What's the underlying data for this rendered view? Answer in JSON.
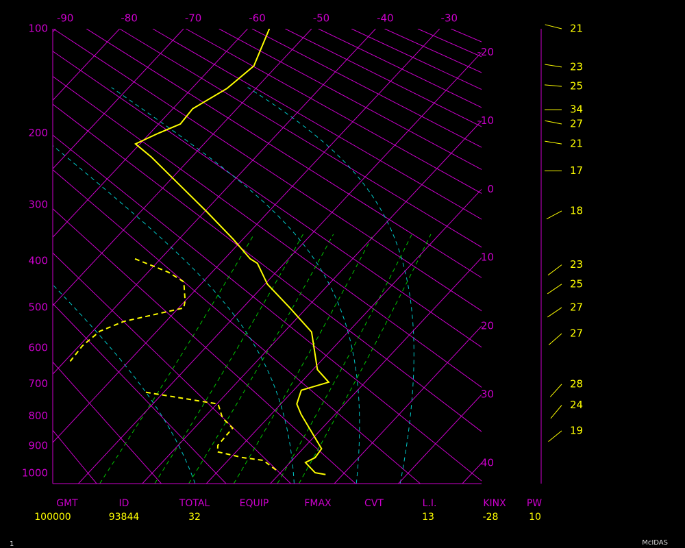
{
  "chart_data": {
    "type": "skewt",
    "axis_color": "#cc00cc",
    "ylim": [
      100,
      1040
    ],
    "yticks": [
      100,
      200,
      300,
      400,
      500,
      600,
      700,
      800,
      900,
      1000
    ],
    "xlim": [
      -24,
      43
    ],
    "xticks": [
      -90,
      -80,
      -70,
      -60,
      -50,
      -40,
      -30
    ],
    "xticks_right": [
      -20,
      -10,
      0,
      10,
      20,
      30,
      40
    ],
    "grid": false,
    "temperature": {
      "color": "#ffff00",
      "dashed": false,
      "pressure": [
        100,
        130,
        151,
        172,
        189,
        200,
        213,
        230,
        263,
        311,
        359,
        396,
        405,
        448,
        501,
        559,
        659,
        695,
        719,
        761,
        794,
        910,
        942,
        960,
        998,
        1005
      ],
      "values": [
        -56.6,
        -53.6,
        -54.5,
        -56.9,
        -56.6,
        -58.7,
        -60.7,
        -56.3,
        -49.1,
        -39.7,
        -31.5,
        -26,
        -24.2,
        -19.6,
        -12.6,
        -5.7,
        0.7,
        4.3,
        1.2,
        2.5,
        4.7,
        12.9,
        13.2,
        12.4,
        15.4,
        17.3
      ]
    },
    "dewpoint": {
      "color": "#ffff00",
      "dashed": true,
      "pressure": [
        396,
        423,
        443,
        485,
        501,
        533,
        557,
        594,
        640,
        null,
        725,
        741,
        761,
        805,
        839,
        898,
        921,
        942,
        952,
        992
      ],
      "values": [
        -44,
        -36.8,
        -33,
        -30,
        -29.2,
        -36.6,
        -38.9,
        -39.5,
        -39.1,
        null,
        -22.8,
        -17,
        -9.8,
        -7.1,
        -4,
        -3.8,
        -2.9,
        1.9,
        5.5,
        9.3
      ]
    },
    "wind": {
      "color": "#ffff00",
      "pressure": [
        100,
        131,
        149,
        173,
        189,
        213,
        249,
        310,
        408,
        448,
        500,
        563,
        701,
        765,
        848
      ],
      "speed": [
        21,
        23,
        25,
        34,
        27,
        21,
        17,
        18,
        23,
        25,
        27,
        27,
        28,
        24,
        19
      ],
      "direction": [
        284,
        279,
        275,
        270,
        281,
        279,
        270,
        242,
        233,
        236,
        236,
        229,
        222,
        220,
        231
      ]
    },
    "indices": [
      {
        "label": "GMT",
        "value": "100000"
      },
      {
        "label": "ID",
        "value": "93844"
      },
      {
        "label": "TOTAL",
        "value": "32"
      },
      {
        "label": "EQUIP"
      },
      {
        "label": "FMAX"
      },
      {
        "label": "CVT"
      },
      {
        "label": "L.I.",
        "value": "13"
      },
      {
        "label": "KINX",
        "value": "-28"
      },
      {
        "label": "PW",
        "value": "10"
      }
    ]
  },
  "footer": {
    "page": "1",
    "source": "McIDAS"
  }
}
